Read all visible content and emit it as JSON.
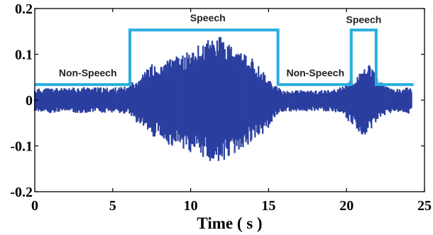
{
  "chart_data": {
    "type": "line",
    "title": "",
    "xlabel": "Time ( s )",
    "ylabel": "",
    "xlim": [
      0,
      25
    ],
    "ylim": [
      -0.2,
      0.2
    ],
    "xticks": [
      "0",
      "5",
      "10",
      "15",
      "20",
      "25"
    ],
    "yticks": [
      "0.2",
      "0.1",
      "0",
      "-0.1",
      "-0.2"
    ],
    "grid": false,
    "series": [
      {
        "role": "waveform",
        "color": "#2b3fa0",
        "envelope": {
          "t": [
            0,
            1,
            2,
            3,
            4,
            5,
            6,
            6.5,
            7,
            7.5,
            8,
            8.5,
            9,
            9.5,
            10,
            10.5,
            11,
            11.5,
            12,
            12.5,
            13,
            13.5,
            14,
            14.5,
            15,
            15.5,
            16,
            17,
            18,
            19,
            19.8,
            20.2,
            20.6,
            21,
            21.4,
            21.8,
            22.2,
            22.6,
            23,
            23.5,
            24,
            24.2
          ],
          "upper": [
            0.025,
            0.028,
            0.026,
            0.03,
            0.028,
            0.028,
            0.03,
            0.05,
            0.06,
            0.08,
            0.07,
            0.09,
            0.095,
            0.1,
            0.11,
            0.12,
            0.13,
            0.15,
            0.14,
            0.12,
            0.11,
            0.1,
            0.09,
            0.07,
            0.05,
            0.03,
            0.02,
            0.022,
            0.022,
            0.022,
            0.03,
            0.045,
            0.05,
            0.065,
            0.08,
            0.06,
            0.04,
            0.03,
            0.025,
            0.025,
            0.03,
            0.02
          ],
          "lower": [
            -0.025,
            -0.03,
            -0.025,
            -0.03,
            -0.028,
            -0.028,
            -0.03,
            -0.05,
            -0.06,
            -0.085,
            -0.08,
            -0.1,
            -0.1,
            -0.11,
            -0.115,
            -0.125,
            -0.13,
            -0.14,
            -0.14,
            -0.13,
            -0.12,
            -0.105,
            -0.09,
            -0.08,
            -0.06,
            -0.035,
            -0.025,
            -0.025,
            -0.025,
            -0.025,
            -0.035,
            -0.05,
            -0.06,
            -0.08,
            -0.075,
            -0.06,
            -0.04,
            -0.03,
            -0.028,
            -0.025,
            -0.03,
            -0.02
          ]
        }
      },
      {
        "role": "vad-decision",
        "color": "#29aee0",
        "x": [
          0,
          6.1,
          6.1,
          15.6,
          15.6,
          20.3,
          20.3,
          21.9,
          21.9,
          24.3
        ],
        "y": [
          0.034,
          0.034,
          0.153,
          0.153,
          0.034,
          0.034,
          0.153,
          0.153,
          0.034,
          0.034
        ]
      }
    ],
    "annotations": [
      {
        "text": "Non-Speech",
        "x": 3.4,
        "y": 0.052
      },
      {
        "text": "Speech",
        "x": 11.1,
        "y": 0.172
      },
      {
        "text": "Non-Speech",
        "x": 18.0,
        "y": 0.052
      },
      {
        "text": "Speech",
        "x": 21.1,
        "y": 0.168
      }
    ]
  }
}
